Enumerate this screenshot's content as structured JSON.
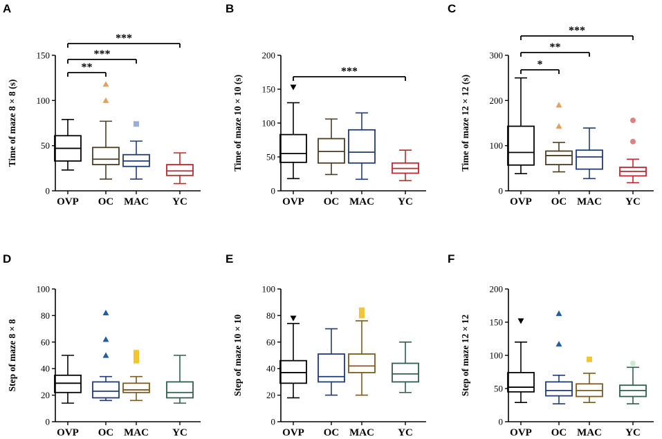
{
  "chart_data": [
    {
      "panel": "A",
      "type": "boxplot",
      "ylabel": "Time of maze 8 × 8 (s)",
      "ylim": [
        0,
        150
      ],
      "yticks": [
        "0",
        "50",
        "100",
        "150"
      ],
      "categories": [
        "OVP",
        "OC",
        "MAC",
        "YC"
      ],
      "boxes": [
        {
          "name": "OVP",
          "color": "#000000",
          "whisker_low": 23,
          "q1": 33,
          "median": 47,
          "q3": 61,
          "whisker_high": 79,
          "outliers": []
        },
        {
          "name": "OC",
          "color": "#4b3b22",
          "whisker_low": 13,
          "q1": 29,
          "median": 35,
          "q3": 48,
          "whisker_high": 77,
          "outliers": [
            {
              "value": 100,
              "marker": "triangle",
              "color": "#e0a060"
            },
            {
              "value": 118,
              "marker": "triangle",
              "color": "#e0a060"
            }
          ]
        },
        {
          "name": "MAC",
          "color": "#1f3b73",
          "whisker_low": 13,
          "q1": 27,
          "median": 33,
          "q3": 40,
          "whisker_high": 55,
          "outliers": [
            {
              "value": 74,
              "marker": "square",
              "color": "#98aed8"
            }
          ]
        },
        {
          "name": "YC",
          "color": "#c0272d",
          "whisker_low": 8,
          "q1": 17,
          "median": 22,
          "q3": 29,
          "whisker_high": 42,
          "outliers": []
        }
      ],
      "significance": [
        {
          "from": "OVP",
          "to": "OC",
          "label": "**"
        },
        {
          "from": "OVP",
          "to": "MAC",
          "label": "***"
        },
        {
          "from": "OVP",
          "to": "YC",
          "label": "***"
        }
      ]
    },
    {
      "panel": "B",
      "type": "boxplot",
      "ylabel": "Time of maze 10 × 10 (s)",
      "ylim": [
        0,
        200
      ],
      "yticks": [
        "0",
        "50",
        "100",
        "150",
        "200"
      ],
      "categories": [
        "OVP",
        "OC",
        "MAC",
        "YC"
      ],
      "boxes": [
        {
          "name": "OVP",
          "color": "#000000",
          "whisker_low": 18,
          "q1": 42,
          "median": 55,
          "q3": 83,
          "whisker_high": 130,
          "outliers": [
            {
              "value": 153,
              "marker": "triangle-down",
              "color": "#000000"
            }
          ]
        },
        {
          "name": "OC",
          "color": "#4b3b22",
          "whisker_low": 24,
          "q1": 41,
          "median": 58,
          "q3": 77,
          "whisker_high": 106,
          "outliers": []
        },
        {
          "name": "MAC",
          "color": "#1f3b73",
          "whisker_low": 17,
          "q1": 41,
          "median": 57,
          "q3": 90,
          "whisker_high": 115,
          "outliers": []
        },
        {
          "name": "YC",
          "color": "#c0272d",
          "whisker_low": 15,
          "q1": 26,
          "median": 33,
          "q3": 41,
          "whisker_high": 60,
          "outliers": []
        }
      ],
      "significance": [
        {
          "from": "OVP",
          "to": "YC",
          "label": "***"
        }
      ]
    },
    {
      "panel": "C",
      "type": "boxplot",
      "ylabel": "Time of maze 12 × 12 (s)",
      "ylim": [
        0,
        300
      ],
      "yticks": [
        "0",
        "100",
        "200",
        "300"
      ],
      "categories": [
        "OVP",
        "OC",
        "MAC",
        "YC"
      ],
      "boxes": [
        {
          "name": "OVP",
          "color": "#000000",
          "whisker_low": 38,
          "q1": 57,
          "median": 85,
          "q3": 143,
          "whisker_high": 250,
          "outliers": []
        },
        {
          "name": "OC",
          "color": "#4b3b22",
          "whisker_low": 42,
          "q1": 58,
          "median": 78,
          "q3": 88,
          "whisker_high": 107,
          "outliers": [
            {
              "value": 143,
              "marker": "triangle",
              "color": "#e0a060"
            },
            {
              "value": 190,
              "marker": "triangle",
              "color": "#e0a060"
            }
          ]
        },
        {
          "name": "MAC",
          "color": "#1f3b73",
          "whisker_low": 27,
          "q1": 48,
          "median": 75,
          "q3": 90,
          "whisker_high": 139,
          "outliers": []
        },
        {
          "name": "YC",
          "color": "#c0272d",
          "whisker_low": 18,
          "q1": 33,
          "median": 43,
          "q3": 52,
          "whisker_high": 70,
          "outliers": [
            {
              "value": 109,
              "marker": "circle",
              "color": "#e08080"
            },
            {
              "value": 156,
              "marker": "circle",
              "color": "#e08080"
            }
          ]
        }
      ],
      "significance": [
        {
          "from": "OVP",
          "to": "OC",
          "label": "*"
        },
        {
          "from": "OVP",
          "to": "MAC",
          "label": "**"
        },
        {
          "from": "OVP",
          "to": "YC",
          "label": "***"
        }
      ]
    },
    {
      "panel": "D",
      "type": "boxplot",
      "ylabel": "Step of maze 8 × 8",
      "ylim": [
        0,
        100
      ],
      "yticks": [
        "0",
        "20",
        "40",
        "60",
        "80",
        "100"
      ],
      "categories": [
        "OVP",
        "OC",
        "MAC",
        "YC"
      ],
      "boxes": [
        {
          "name": "OVP",
          "color": "#000000",
          "whisker_low": 14,
          "q1": 22,
          "median": 29,
          "q3": 35,
          "whisker_high": 50,
          "outliers": []
        },
        {
          "name": "OC",
          "color": "#1f3b73",
          "whisker_low": 16,
          "q1": 18,
          "median": 23,
          "q3": 30,
          "whisker_high": 34,
          "outliers": [
            {
              "value": 50,
              "marker": "triangle",
              "color": "#1f5f9f"
            },
            {
              "value": 62,
              "marker": "triangle",
              "color": "#1f5f9f"
            },
            {
              "value": 82,
              "marker": "triangle",
              "color": "#1f5f9f"
            }
          ]
        },
        {
          "name": "MAC",
          "color": "#7a5a1e",
          "whisker_low": 16,
          "q1": 22,
          "median": 24,
          "q3": 29,
          "whisker_high": 34,
          "outliers": [
            {
              "value": 46,
              "marker": "square",
              "color": "#f2c633"
            },
            {
              "value": 48,
              "marker": "square",
              "color": "#f2c633"
            },
            {
              "value": 50,
              "marker": "square",
              "color": "#f2c633"
            },
            {
              "value": 52,
              "marker": "square",
              "color": "#f2c633"
            }
          ]
        },
        {
          "name": "YC",
          "color": "#2e5e4e",
          "whisker_low": 14,
          "q1": 18,
          "median": 22,
          "q3": 30,
          "whisker_high": 50,
          "outliers": []
        }
      ],
      "significance": []
    },
    {
      "panel": "E",
      "type": "boxplot",
      "ylabel": "Step of maze 10 × 10",
      "ylim": [
        0,
        100
      ],
      "yticks": [
        "0",
        "20",
        "40",
        "60",
        "80",
        "100"
      ],
      "categories": [
        "OVP",
        "OC",
        "MAC",
        "YC"
      ],
      "boxes": [
        {
          "name": "OVP",
          "color": "#000000",
          "whisker_low": 18,
          "q1": 29,
          "median": 37,
          "q3": 46,
          "whisker_high": 74,
          "outliers": [
            {
              "value": 78,
              "marker": "triangle-down",
              "color": "#000000"
            }
          ]
        },
        {
          "name": "OC",
          "color": "#1f3b73",
          "whisker_low": 20,
          "q1": 30,
          "median": 34,
          "q3": 51,
          "whisker_high": 70,
          "outliers": []
        },
        {
          "name": "MAC",
          "color": "#7a5a1e",
          "whisker_low": 20,
          "q1": 37,
          "median": 42,
          "q3": 51,
          "whisker_high": 76,
          "outliers": [
            {
              "value": 80,
              "marker": "square",
              "color": "#f2c633"
            },
            {
              "value": 84,
              "marker": "square",
              "color": "#f2c633"
            }
          ]
        },
        {
          "name": "YC",
          "color": "#2e5e4e",
          "whisker_low": 22,
          "q1": 30,
          "median": 36,
          "q3": 44,
          "whisker_high": 60,
          "outliers": []
        }
      ],
      "significance": []
    },
    {
      "panel": "F",
      "type": "boxplot",
      "ylabel": "Step of maze 12 × 12",
      "ylim": [
        0,
        200
      ],
      "yticks": [
        "0",
        "50",
        "100",
        "150",
        "200"
      ],
      "categories": [
        "OVP",
        "OC",
        "MAC",
        "YC"
      ],
      "boxes": [
        {
          "name": "OVP",
          "color": "#000000",
          "whisker_low": 29,
          "q1": 45,
          "median": 52,
          "q3": 74,
          "whisker_high": 120,
          "outliers": [
            {
              "value": 152,
              "marker": "triangle-down",
              "color": "#000000"
            }
          ]
        },
        {
          "name": "OC",
          "color": "#1f3b73",
          "whisker_low": 27,
          "q1": 39,
          "median": 47,
          "q3": 60,
          "whisker_high": 70,
          "outliers": [
            {
              "value": 117,
              "marker": "triangle",
              "color": "#1f5f9f"
            },
            {
              "value": 163,
              "marker": "triangle",
              "color": "#1f5f9f"
            }
          ]
        },
        {
          "name": "MAC",
          "color": "#7a5a1e",
          "whisker_low": 29,
          "q1": 38,
          "median": 47,
          "q3": 57,
          "whisker_high": 73,
          "outliers": [
            {
              "value": 94,
              "marker": "square",
              "color": "#f2c633"
            }
          ]
        },
        {
          "name": "YC",
          "color": "#2e5e4e",
          "whisker_low": 27,
          "q1": 38,
          "median": 47,
          "q3": 55,
          "whisker_high": 82,
          "outliers": [
            {
              "value": 88,
              "marker": "circle",
              "color": "#cfe8d0"
            }
          ]
        }
      ],
      "significance": []
    }
  ]
}
